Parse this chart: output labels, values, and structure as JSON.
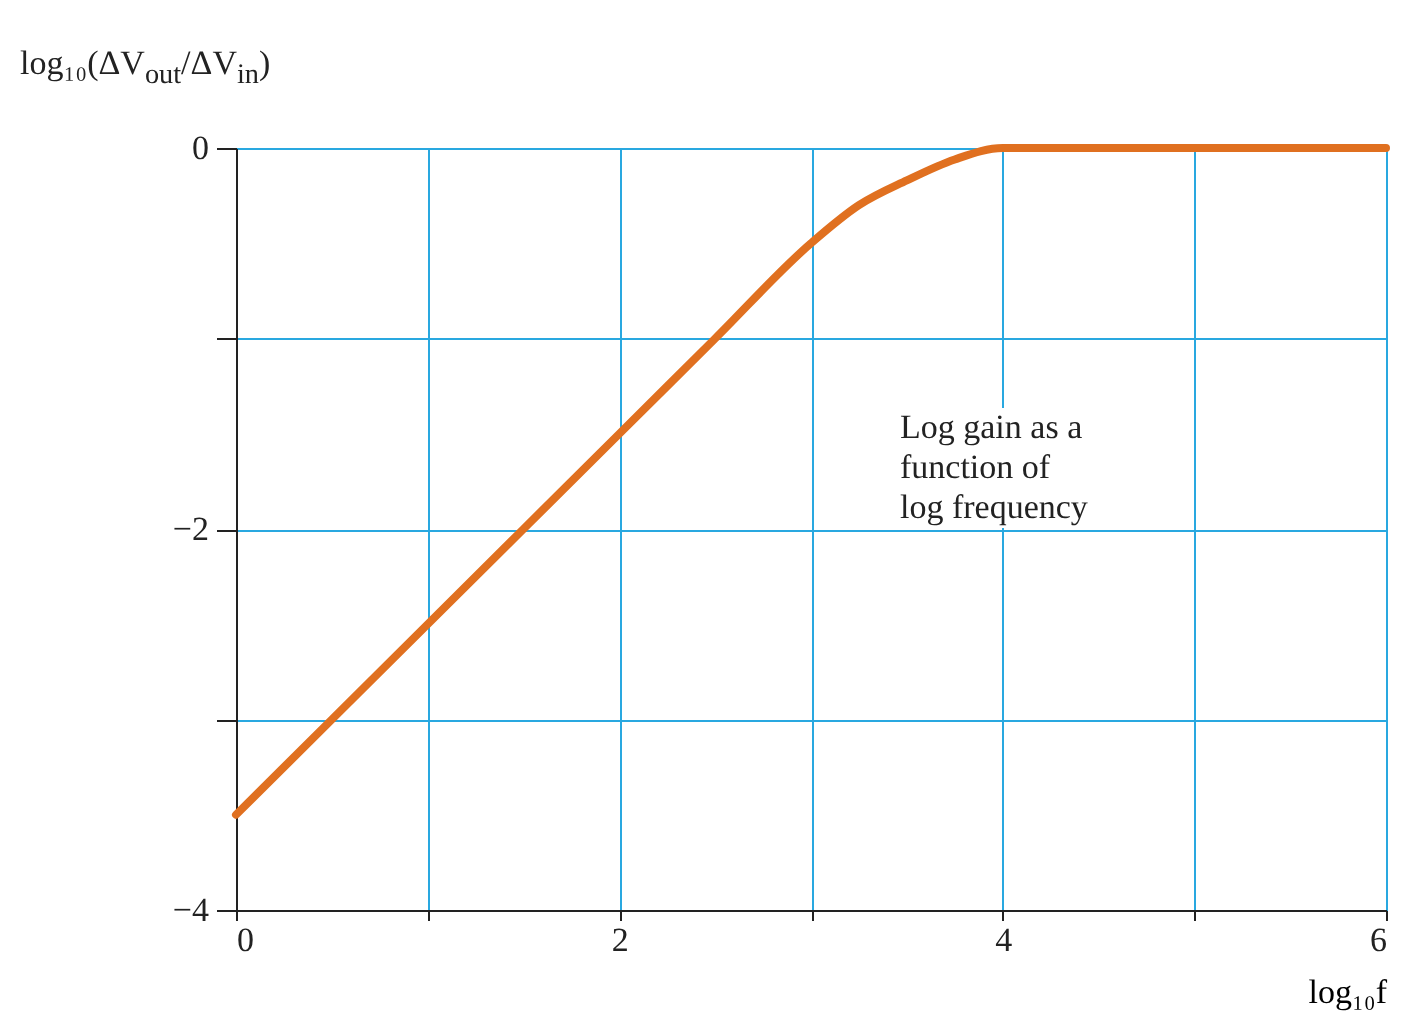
{
  "chart_data": {
    "type": "line",
    "xlabel": "log₁₀f",
    "ylabel": "log₁₀(ΔV$_{out}$/ΔV$_{in}$)",
    "annotations": [
      "Log gain as a\nfunction of\nlog frequency"
    ],
    "x": [
      0,
      0.5,
      1,
      1.5,
      2,
      2.5,
      3,
      3.25,
      3.5,
      3.75,
      4,
      5,
      6
    ],
    "series": [
      {
        "color": "#e07020",
        "values": [
          -3.5,
          -3,
          -2.5,
          -2,
          -1.5,
          -1,
          -0.5,
          -0.3,
          -0.17,
          -0.06,
          0,
          0,
          0
        ]
      }
    ],
    "xlim": [
      0,
      6
    ],
    "xticks": [
      0,
      {
        "value": 1,
        "label": null
      },
      2,
      {
        "value": 3,
        "label": null
      },
      4,
      {
        "value": 5,
        "label": null
      },
      6
    ],
    "ylim": [
      -4,
      0
    ],
    "yticks": [
      {
        "value": -4,
        "label": "−4"
      },
      {
        "value": -3,
        "label": null
      },
      {
        "value": -2,
        "label": "−2"
      },
      {
        "value": -1,
        "label": null
      },
      0
    ],
    "grid": true,
    "marker": "none",
    "line_style": "solid"
  }
}
